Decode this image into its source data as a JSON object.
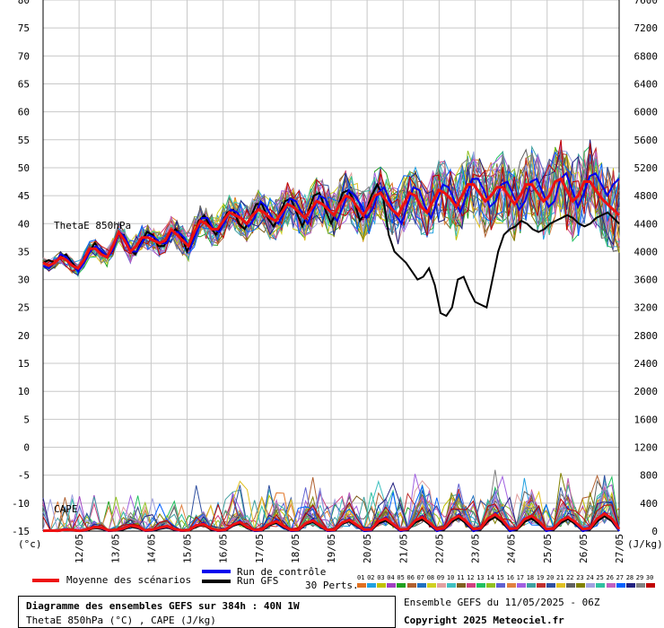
{
  "chart_data": {
    "type": "line",
    "y_left": {
      "min": -15,
      "max": 80,
      "step": 5,
      "unit": "(°c)"
    },
    "y_right": {
      "min": 0,
      "max": 7600,
      "step": 400,
      "unit": "(J/kg)"
    },
    "x_dates": [
      "12/05",
      "13/05",
      "14/05",
      "15/05",
      "16/05",
      "17/05",
      "18/05",
      "19/05",
      "20/05",
      "21/05",
      "22/05",
      "23/05",
      "24/05",
      "25/05",
      "26/05",
      "27/05"
    ],
    "x_range_hours": [
      6,
      390
    ],
    "panel_labels": {
      "thetae": "ThetaE 850hPa",
      "cape": "CAPE"
    },
    "grid": true,
    "series": [
      {
        "name": "Moyenne des scénarios",
        "color": "#ee1111",
        "thetae": [
          33,
          32.5,
          33,
          34,
          33.5,
          32.5,
          32,
          33.5,
          35.5,
          35.5,
          34.5,
          34,
          36,
          38.5,
          37,
          35,
          36,
          37.5,
          37.5,
          37,
          36.5,
          37,
          39,
          38,
          37,
          36,
          38.5,
          40.5,
          40,
          39,
          39,
          40.5,
          42,
          41.5,
          41,
          40,
          41.5,
          42.5,
          42,
          41,
          40.5,
          42,
          43.5,
          43,
          42,
          41,
          42.5,
          44,
          43.5,
          42.5,
          41.5,
          43.5,
          45,
          44.5,
          43,
          41.5,
          43,
          45,
          45.5,
          44,
          42.5,
          41.5,
          43.5,
          45.5,
          45,
          43,
          42,
          44,
          46,
          45.5,
          44.5,
          43,
          45,
          47,
          47,
          45.5,
          44,
          45,
          46.5,
          46.5,
          45,
          43.5,
          45,
          47,
          47,
          45.5,
          44,
          45,
          47.5,
          48,
          46,
          44,
          45,
          47.5,
          47.5,
          46,
          44.5,
          43.5,
          42.5,
          41.5
        ],
        "cape": [
          5,
          8,
          5,
          20,
          15,
          5,
          20,
          60,
          50,
          10,
          15,
          40,
          80,
          60,
          10,
          20,
          50,
          70,
          30,
          10,
          15,
          80,
          100,
          40,
          10,
          20,
          90,
          130,
          60,
          15,
          20,
          100,
          140,
          70,
          15,
          20,
          110,
          150,
          80,
          15,
          20,
          120,
          160,
          90,
          20,
          25,
          140,
          180,
          100,
          20,
          30,
          150,
          200,
          120,
          25,
          40,
          160,
          220,
          140,
          30,
          40,
          180,
          240,
          160,
          35,
          40,
          170,
          220,
          140,
          30,
          35,
          150,
          200,
          130,
          30,
          40,
          180,
          250,
          180,
          30
        ]
      },
      {
        "name": "Run de contrôle",
        "color": "#0000ee",
        "thetae": [
          32.5,
          32,
          33,
          34.5,
          34,
          32.5,
          31.5,
          33,
          35,
          36,
          35,
          34,
          35.5,
          38.5,
          37.5,
          35,
          35,
          37,
          38,
          37.5,
          36.5,
          36.5,
          38.5,
          38.5,
          37.5,
          35.5,
          38,
          41,
          41,
          39,
          38.5,
          40.5,
          42.5,
          42,
          40.5,
          39.5,
          41,
          44,
          43,
          41,
          40,
          42,
          44.5,
          44,
          42,
          40,
          42.5,
          45,
          44.5,
          42,
          40.5,
          43,
          46,
          45,
          43.5,
          41,
          42.5,
          45.5,
          46.5,
          44,
          41.5,
          40,
          43.5,
          46.5,
          46,
          43,
          41,
          44,
          47,
          46.5,
          44,
          42,
          45,
          48,
          48,
          46,
          43,
          44,
          47,
          47.5,
          45,
          42.5,
          44,
          47.5,
          48,
          45.5,
          43,
          44,
          48,
          49,
          46,
          43,
          45.5,
          48.5,
          49,
          47,
          45,
          47,
          48
        ],
        "cape": [
          0,
          5,
          0,
          15,
          10,
          0,
          10,
          70,
          40,
          0,
          10,
          30,
          90,
          50,
          0,
          10,
          40,
          60,
          20,
          0,
          10,
          70,
          120,
          30,
          0,
          10,
          80,
          150,
          50,
          0,
          10,
          90,
          160,
          60,
          0,
          10,
          100,
          170,
          70,
          0,
          10,
          110,
          180,
          80,
          0,
          10,
          130,
          200,
          90,
          0,
          20,
          140,
          220,
          110,
          0,
          30,
          150,
          240,
          130,
          0,
          30,
          170,
          260,
          150,
          0,
          30,
          160,
          230,
          130,
          0,
          25,
          140,
          210,
          120,
          0,
          30,
          170,
          270,
          170,
          0
        ]
      },
      {
        "name": "Run GFS",
        "color": "#000000",
        "thetae": [
          33,
          33.5,
          33,
          34,
          34.5,
          33,
          32,
          33,
          35,
          36.5,
          35,
          34,
          35,
          38,
          38,
          35.5,
          34.5,
          36.5,
          38.5,
          38,
          36,
          36,
          38,
          39,
          38,
          35,
          37.5,
          40.5,
          41.5,
          39.5,
          38,
          40,
          42,
          42.5,
          40,
          39,
          41,
          43.5,
          43.5,
          41,
          39.5,
          41.5,
          44,
          44.5,
          42,
          39.5,
          42,
          45,
          45.5,
          42.5,
          40,
          42.5,
          45.5,
          46,
          44,
          40.5,
          42,
          45,
          47,
          45,
          38,
          35,
          34,
          33,
          31.5,
          30,
          30.5,
          32,
          29,
          24,
          23.5,
          25,
          30,
          30.5,
          28,
          26,
          25.5,
          25,
          30,
          35,
          38,
          39,
          39.5,
          40.5,
          40,
          39,
          38.5,
          39,
          40,
          40.5,
          41,
          41.5,
          41,
          40,
          39.5,
          40,
          41,
          41.5,
          42,
          41,
          40
        ],
        "cape": [
          0,
          0,
          0,
          10,
          5,
          0,
          5,
          50,
          30,
          0,
          5,
          20,
          60,
          40,
          0,
          5,
          30,
          50,
          15,
          0,
          5,
          60,
          90,
          20,
          0,
          5,
          70,
          110,
          40,
          0,
          5,
          80,
          120,
          50,
          0,
          5,
          90,
          130,
          60,
          0,
          5,
          100,
          140,
          70,
          0,
          5,
          110,
          150,
          80,
          0,
          10,
          120,
          170,
          90,
          0,
          20,
          130,
          190,
          110,
          0,
          20,
          140,
          200,
          120,
          0,
          20,
          130,
          180,
          100,
          0,
          15,
          120,
          170,
          100,
          0,
          20,
          140,
          210,
          140,
          0
        ]
      }
    ],
    "perturbations": {
      "count": 30,
      "labels": [
        "01",
        "02",
        "03",
        "04",
        "05",
        "06",
        "07",
        "08",
        "09",
        "10",
        "11",
        "12",
        "13",
        "14",
        "15",
        "16",
        "17",
        "18",
        "19",
        "20",
        "21",
        "22",
        "23",
        "24",
        "25",
        "26",
        "27",
        "28",
        "29",
        "30"
      ],
      "colors": [
        "#e07020",
        "#20a0e0",
        "#c0c000",
        "#a040c0",
        "#20a020",
        "#b06030",
        "#2070c0",
        "#d0d020",
        "#e0a0a0",
        "#40c0c0",
        "#806020",
        "#d04080",
        "#20c060",
        "#90c020",
        "#6060d0",
        "#e08040",
        "#a060e0",
        "#40a0a0",
        "#c03030",
        "#3050a0",
        "#e0c020",
        "#606060",
        "#808000",
        "#a0a0e0",
        "#30c0a0",
        "#c060c0",
        "#0060ff",
        "#202080",
        "#808080",
        "#c00000"
      ]
    }
  },
  "legend": {
    "mean_label": "Moyenne des scénarios",
    "control_label": "Run de contrôle",
    "gfs_label": "Run GFS",
    "perts_label": "30 Perts."
  },
  "info_box": {
    "title": "Diagramme des ensembles GEFS sur 384h : 40N 1W",
    "subtitle": "ThetaE 850hPa (°C) , CAPE (J/kg)"
  },
  "footer": {
    "ensemble": "Ensemble GEFS du 11/05/2025 - 06Z",
    "copyright": "Copyright 2025 Meteociel.fr"
  }
}
